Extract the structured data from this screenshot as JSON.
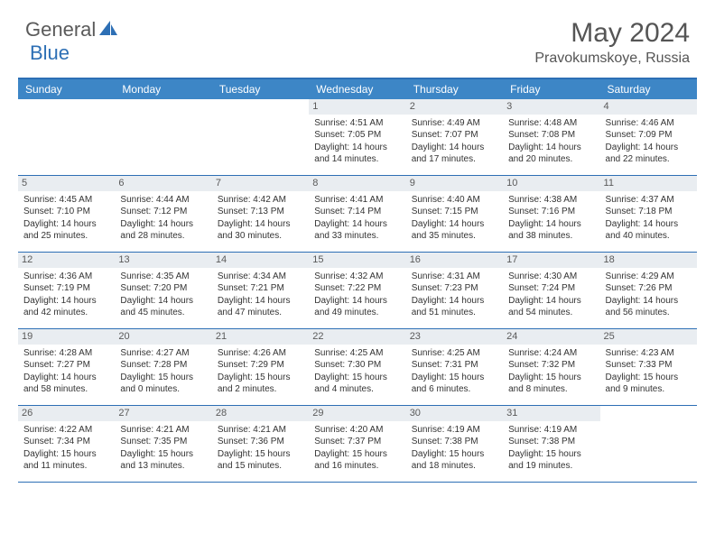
{
  "logo": {
    "text1": "General",
    "text2": "Blue"
  },
  "title": "May 2024",
  "location": "Pravokumskoye, Russia",
  "colors": {
    "header_bar": "#3d86c6",
    "border": "#2d6fb5",
    "daynum_bg": "#e9edf1",
    "logo_shape": "#2d6fb5",
    "text": "#555"
  },
  "day_headers": [
    "Sunday",
    "Monday",
    "Tuesday",
    "Wednesday",
    "Thursday",
    "Friday",
    "Saturday"
  ],
  "weeks": [
    [
      {
        "n": "",
        "l1": "",
        "l2": "",
        "l3": "",
        "l4": ""
      },
      {
        "n": "",
        "l1": "",
        "l2": "",
        "l3": "",
        "l4": ""
      },
      {
        "n": "",
        "l1": "",
        "l2": "",
        "l3": "",
        "l4": ""
      },
      {
        "n": "1",
        "l1": "Sunrise: 4:51 AM",
        "l2": "Sunset: 7:05 PM",
        "l3": "Daylight: 14 hours",
        "l4": "and 14 minutes."
      },
      {
        "n": "2",
        "l1": "Sunrise: 4:49 AM",
        "l2": "Sunset: 7:07 PM",
        "l3": "Daylight: 14 hours",
        "l4": "and 17 minutes."
      },
      {
        "n": "3",
        "l1": "Sunrise: 4:48 AM",
        "l2": "Sunset: 7:08 PM",
        "l3": "Daylight: 14 hours",
        "l4": "and 20 minutes."
      },
      {
        "n": "4",
        "l1": "Sunrise: 4:46 AM",
        "l2": "Sunset: 7:09 PM",
        "l3": "Daylight: 14 hours",
        "l4": "and 22 minutes."
      }
    ],
    [
      {
        "n": "5",
        "l1": "Sunrise: 4:45 AM",
        "l2": "Sunset: 7:10 PM",
        "l3": "Daylight: 14 hours",
        "l4": "and 25 minutes."
      },
      {
        "n": "6",
        "l1": "Sunrise: 4:44 AM",
        "l2": "Sunset: 7:12 PM",
        "l3": "Daylight: 14 hours",
        "l4": "and 28 minutes."
      },
      {
        "n": "7",
        "l1": "Sunrise: 4:42 AM",
        "l2": "Sunset: 7:13 PM",
        "l3": "Daylight: 14 hours",
        "l4": "and 30 minutes."
      },
      {
        "n": "8",
        "l1": "Sunrise: 4:41 AM",
        "l2": "Sunset: 7:14 PM",
        "l3": "Daylight: 14 hours",
        "l4": "and 33 minutes."
      },
      {
        "n": "9",
        "l1": "Sunrise: 4:40 AM",
        "l2": "Sunset: 7:15 PM",
        "l3": "Daylight: 14 hours",
        "l4": "and 35 minutes."
      },
      {
        "n": "10",
        "l1": "Sunrise: 4:38 AM",
        "l2": "Sunset: 7:16 PM",
        "l3": "Daylight: 14 hours",
        "l4": "and 38 minutes."
      },
      {
        "n": "11",
        "l1": "Sunrise: 4:37 AM",
        "l2": "Sunset: 7:18 PM",
        "l3": "Daylight: 14 hours",
        "l4": "and 40 minutes."
      }
    ],
    [
      {
        "n": "12",
        "l1": "Sunrise: 4:36 AM",
        "l2": "Sunset: 7:19 PM",
        "l3": "Daylight: 14 hours",
        "l4": "and 42 minutes."
      },
      {
        "n": "13",
        "l1": "Sunrise: 4:35 AM",
        "l2": "Sunset: 7:20 PM",
        "l3": "Daylight: 14 hours",
        "l4": "and 45 minutes."
      },
      {
        "n": "14",
        "l1": "Sunrise: 4:34 AM",
        "l2": "Sunset: 7:21 PM",
        "l3": "Daylight: 14 hours",
        "l4": "and 47 minutes."
      },
      {
        "n": "15",
        "l1": "Sunrise: 4:32 AM",
        "l2": "Sunset: 7:22 PM",
        "l3": "Daylight: 14 hours",
        "l4": "and 49 minutes."
      },
      {
        "n": "16",
        "l1": "Sunrise: 4:31 AM",
        "l2": "Sunset: 7:23 PM",
        "l3": "Daylight: 14 hours",
        "l4": "and 51 minutes."
      },
      {
        "n": "17",
        "l1": "Sunrise: 4:30 AM",
        "l2": "Sunset: 7:24 PM",
        "l3": "Daylight: 14 hours",
        "l4": "and 54 minutes."
      },
      {
        "n": "18",
        "l1": "Sunrise: 4:29 AM",
        "l2": "Sunset: 7:26 PM",
        "l3": "Daylight: 14 hours",
        "l4": "and 56 minutes."
      }
    ],
    [
      {
        "n": "19",
        "l1": "Sunrise: 4:28 AM",
        "l2": "Sunset: 7:27 PM",
        "l3": "Daylight: 14 hours",
        "l4": "and 58 minutes."
      },
      {
        "n": "20",
        "l1": "Sunrise: 4:27 AM",
        "l2": "Sunset: 7:28 PM",
        "l3": "Daylight: 15 hours",
        "l4": "and 0 minutes."
      },
      {
        "n": "21",
        "l1": "Sunrise: 4:26 AM",
        "l2": "Sunset: 7:29 PM",
        "l3": "Daylight: 15 hours",
        "l4": "and 2 minutes."
      },
      {
        "n": "22",
        "l1": "Sunrise: 4:25 AM",
        "l2": "Sunset: 7:30 PM",
        "l3": "Daylight: 15 hours",
        "l4": "and 4 minutes."
      },
      {
        "n": "23",
        "l1": "Sunrise: 4:25 AM",
        "l2": "Sunset: 7:31 PM",
        "l3": "Daylight: 15 hours",
        "l4": "and 6 minutes."
      },
      {
        "n": "24",
        "l1": "Sunrise: 4:24 AM",
        "l2": "Sunset: 7:32 PM",
        "l3": "Daylight: 15 hours",
        "l4": "and 8 minutes."
      },
      {
        "n": "25",
        "l1": "Sunrise: 4:23 AM",
        "l2": "Sunset: 7:33 PM",
        "l3": "Daylight: 15 hours",
        "l4": "and 9 minutes."
      }
    ],
    [
      {
        "n": "26",
        "l1": "Sunrise: 4:22 AM",
        "l2": "Sunset: 7:34 PM",
        "l3": "Daylight: 15 hours",
        "l4": "and 11 minutes."
      },
      {
        "n": "27",
        "l1": "Sunrise: 4:21 AM",
        "l2": "Sunset: 7:35 PM",
        "l3": "Daylight: 15 hours",
        "l4": "and 13 minutes."
      },
      {
        "n": "28",
        "l1": "Sunrise: 4:21 AM",
        "l2": "Sunset: 7:36 PM",
        "l3": "Daylight: 15 hours",
        "l4": "and 15 minutes."
      },
      {
        "n": "29",
        "l1": "Sunrise: 4:20 AM",
        "l2": "Sunset: 7:37 PM",
        "l3": "Daylight: 15 hours",
        "l4": "and 16 minutes."
      },
      {
        "n": "30",
        "l1": "Sunrise: 4:19 AM",
        "l2": "Sunset: 7:38 PM",
        "l3": "Daylight: 15 hours",
        "l4": "and 18 minutes."
      },
      {
        "n": "31",
        "l1": "Sunrise: 4:19 AM",
        "l2": "Sunset: 7:38 PM",
        "l3": "Daylight: 15 hours",
        "l4": "and 19 minutes."
      },
      {
        "n": "",
        "l1": "",
        "l2": "",
        "l3": "",
        "l4": ""
      }
    ]
  ]
}
